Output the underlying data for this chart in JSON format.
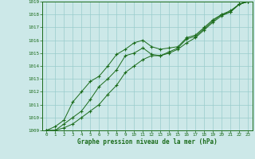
{
  "title": "Graphe pression niveau de la mer (hPa)",
  "background_color": "#cce8e8",
  "grid_color": "#99cccc",
  "line_color": "#1a6b1a",
  "marker_color": "#1a6b1a",
  "xlim": [
    -0.5,
    23.5
  ],
  "ylim": [
    1009,
    1019
  ],
  "xticks": [
    0,
    1,
    2,
    3,
    4,
    5,
    6,
    7,
    8,
    9,
    10,
    11,
    12,
    13,
    14,
    15,
    16,
    17,
    18,
    19,
    20,
    21,
    22,
    23
  ],
  "yticks": [
    1009,
    1010,
    1011,
    1012,
    1013,
    1014,
    1015,
    1016,
    1017,
    1018,
    1019
  ],
  "series1": [
    1009.0,
    1009.3,
    1009.8,
    1011.2,
    1012.0,
    1012.8,
    1013.2,
    1014.0,
    1014.9,
    1015.3,
    1015.8,
    1016.0,
    1015.5,
    1015.3,
    1015.4,
    1015.5,
    1016.2,
    1016.4,
    1017.0,
    1017.6,
    1018.0,
    1018.3,
    1018.8,
    1019.0
  ],
  "series2": [
    1009.0,
    1009.0,
    1009.5,
    1010.0,
    1010.5,
    1011.4,
    1012.4,
    1013.0,
    1013.7,
    1014.8,
    1015.0,
    1015.4,
    1014.9,
    1014.8,
    1015.1,
    1015.4,
    1016.1,
    1016.3,
    1016.9,
    1017.5,
    1018.0,
    1018.2,
    1018.8,
    1019.0
  ],
  "series3": [
    1009.0,
    1009.0,
    1009.2,
    1009.5,
    1010.0,
    1010.5,
    1011.0,
    1011.8,
    1012.5,
    1013.5,
    1014.0,
    1014.5,
    1014.8,
    1014.8,
    1015.0,
    1015.3,
    1015.8,
    1016.2,
    1016.8,
    1017.4,
    1017.9,
    1018.2,
    1018.8,
    1019.0
  ]
}
